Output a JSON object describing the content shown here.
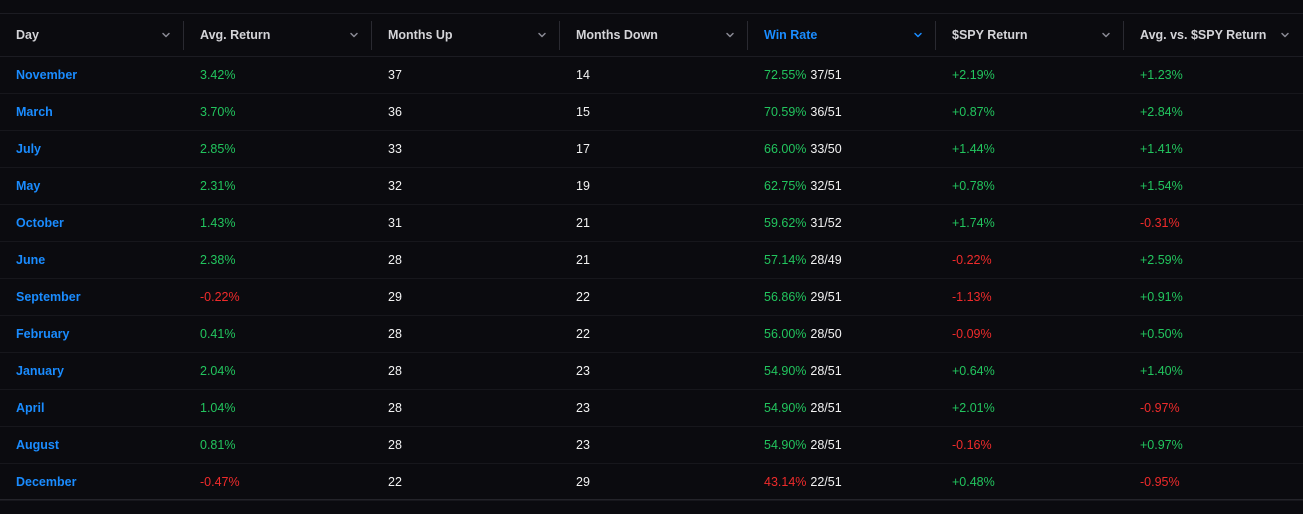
{
  "columns": [
    {
      "key": "day",
      "label": "Day"
    },
    {
      "key": "avg_return",
      "label": "Avg. Return"
    },
    {
      "key": "months_up",
      "label": "Months Up"
    },
    {
      "key": "months_down",
      "label": "Months Down"
    },
    {
      "key": "win_rate",
      "label": "Win Rate",
      "active": true
    },
    {
      "key": "spy_return",
      "label": "$SPY Return"
    },
    {
      "key": "avg_vs_spy",
      "label": "Avg. vs. $SPY Return"
    }
  ],
  "rows": [
    {
      "day": "November",
      "avg_return": "3.42%",
      "months_up": "37",
      "months_down": "14",
      "win_rate": "72.55%",
      "win_frac": "37/51",
      "spy_return": "+2.19%",
      "avg_vs_spy": "+1.23%"
    },
    {
      "day": "March",
      "avg_return": "3.70%",
      "months_up": "36",
      "months_down": "15",
      "win_rate": "70.59%",
      "win_frac": "36/51",
      "spy_return": "+0.87%",
      "avg_vs_spy": "+2.84%"
    },
    {
      "day": "July",
      "avg_return": "2.85%",
      "months_up": "33",
      "months_down": "17",
      "win_rate": "66.00%",
      "win_frac": "33/50",
      "spy_return": "+1.44%",
      "avg_vs_spy": "+1.41%"
    },
    {
      "day": "May",
      "avg_return": "2.31%",
      "months_up": "32",
      "months_down": "19",
      "win_rate": "62.75%",
      "win_frac": "32/51",
      "spy_return": "+0.78%",
      "avg_vs_spy": "+1.54%"
    },
    {
      "day": "October",
      "avg_return": "1.43%",
      "months_up": "31",
      "months_down": "21",
      "win_rate": "59.62%",
      "win_frac": "31/52",
      "spy_return": "+1.74%",
      "avg_vs_spy": "-0.31%"
    },
    {
      "day": "June",
      "avg_return": "2.38%",
      "months_up": "28",
      "months_down": "21",
      "win_rate": "57.14%",
      "win_frac": "28/49",
      "spy_return": "-0.22%",
      "avg_vs_spy": "+2.59%"
    },
    {
      "day": "September",
      "avg_return": "-0.22%",
      "months_up": "29",
      "months_down": "22",
      "win_rate": "56.86%",
      "win_frac": "29/51",
      "spy_return": "-1.13%",
      "avg_vs_spy": "+0.91%"
    },
    {
      "day": "February",
      "avg_return": "0.41%",
      "months_up": "28",
      "months_down": "22",
      "win_rate": "56.00%",
      "win_frac": "28/50",
      "spy_return": "-0.09%",
      "avg_vs_spy": "+0.50%"
    },
    {
      "day": "January",
      "avg_return": "2.04%",
      "months_up": "28",
      "months_down": "23",
      "win_rate": "54.90%",
      "win_frac": "28/51",
      "spy_return": "+0.64%",
      "avg_vs_spy": "+1.40%"
    },
    {
      "day": "April",
      "avg_return": "1.04%",
      "months_up": "28",
      "months_down": "23",
      "win_rate": "54.90%",
      "win_frac": "28/51",
      "spy_return": "+2.01%",
      "avg_vs_spy": "-0.97%"
    },
    {
      "day": "August",
      "avg_return": "0.81%",
      "months_up": "28",
      "months_down": "23",
      "win_rate": "54.90%",
      "win_frac": "28/51",
      "spy_return": "-0.16%",
      "avg_vs_spy": "+0.97%"
    },
    {
      "day": "December",
      "avg_return": "-0.47%",
      "months_up": "22",
      "months_down": "29",
      "win_rate": "43.14%",
      "win_frac": "22/51",
      "spy_return": "+0.48%",
      "avg_vs_spy": "-0.95%"
    }
  ],
  "colors": {
    "background": "#0b0b0f",
    "accent": "#1a8cff",
    "positive": "#22c55e",
    "negative": "#ef2b2b",
    "text": "#f2f2f2",
    "header_text": "#d4d4d8"
  },
  "icons": {
    "sort": "chevron-down-icon"
  }
}
